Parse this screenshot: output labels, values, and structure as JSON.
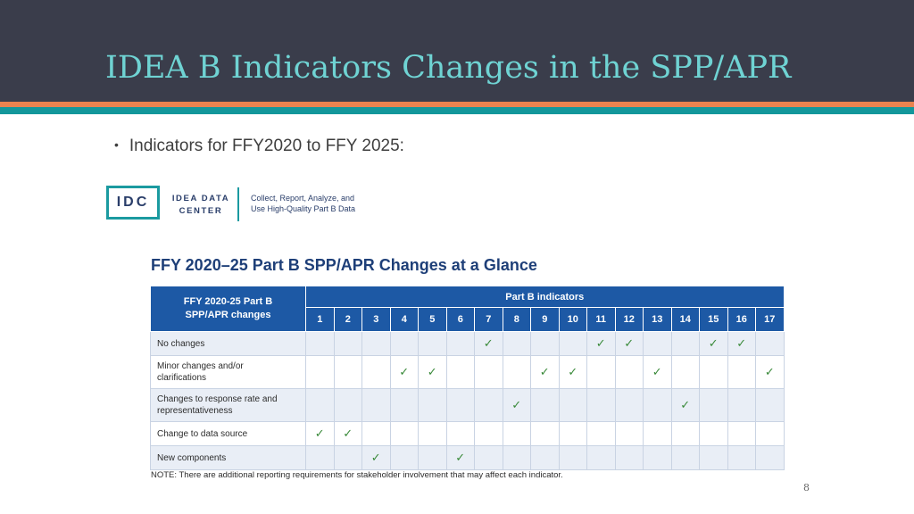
{
  "slide": {
    "title": "IDEA B Indicators Changes in the SPP/APR",
    "bullet": "Indicators for FFY2020 to FFY 2025:",
    "page_number": "8"
  },
  "logo": {
    "abbr": "IDC",
    "name_line1": "IDEA DATA",
    "name_line2": "CENTER",
    "tagline_line1": "Collect, Report, Analyze, and",
    "tagline_line2": "Use High-Quality Part B Data"
  },
  "table": {
    "title": "FFY 2020–25 Part B SPP/APR Changes at a Glance",
    "corner_line1": "FFY 2020-25  Part B",
    "corner_line2": "SPP/APR changes",
    "group_header": "Part B indicators",
    "indicators": [
      "1",
      "2",
      "3",
      "4",
      "5",
      "6",
      "7",
      "8",
      "9",
      "10",
      "11",
      "12",
      "13",
      "14",
      "15",
      "16",
      "17"
    ],
    "rows": [
      {
        "label": "No changes",
        "checks": [
          7,
          11,
          12,
          15,
          16
        ]
      },
      {
        "label_line1": "Minor changes and/or",
        "label_line2": "clarifications",
        "checks": [
          4,
          5,
          9,
          10,
          13,
          17
        ]
      },
      {
        "label_line1": "Changes to response rate and",
        "label_line2": "representativeness",
        "checks": [
          8,
          14
        ]
      },
      {
        "label": "Change to data source",
        "checks": [
          1,
          2
        ]
      },
      {
        "label": "New components",
        "checks": [
          3,
          6
        ]
      }
    ],
    "note": "NOTE: There are additional reporting requirements for stakeholder involvement that may affect each indicator.",
    "check_glyph": "✓"
  },
  "colors": {
    "header_bg": "#3a3d4b",
    "title_color": "#6fd3d3",
    "stripe_orange": "#e9834f",
    "stripe_teal": "#13979b",
    "table_header_bg": "#1d59a5",
    "check_color": "#3a8a3a"
  }
}
